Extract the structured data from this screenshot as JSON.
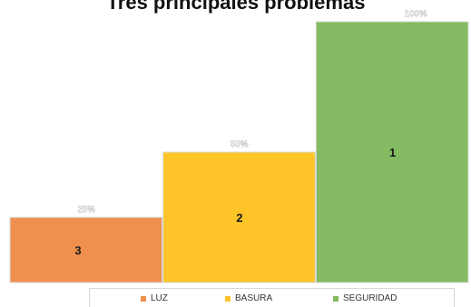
{
  "chart_data": {
    "type": "bar",
    "title": "Tres principales problemas",
    "categories": [
      "LUZ",
      "BASURA",
      "SEGURIDAD"
    ],
    "values": [
      25,
      50,
      100
    ],
    "value_labels": [
      "25%",
      "50%",
      "100%"
    ],
    "bar_labels": [
      "3",
      "2",
      "1"
    ],
    "ylim": [
      0,
      100
    ],
    "colors": [
      "#f0904f",
      "#ffc428",
      "#84ba61"
    ],
    "grid": false,
    "legend_position": "bottom"
  }
}
